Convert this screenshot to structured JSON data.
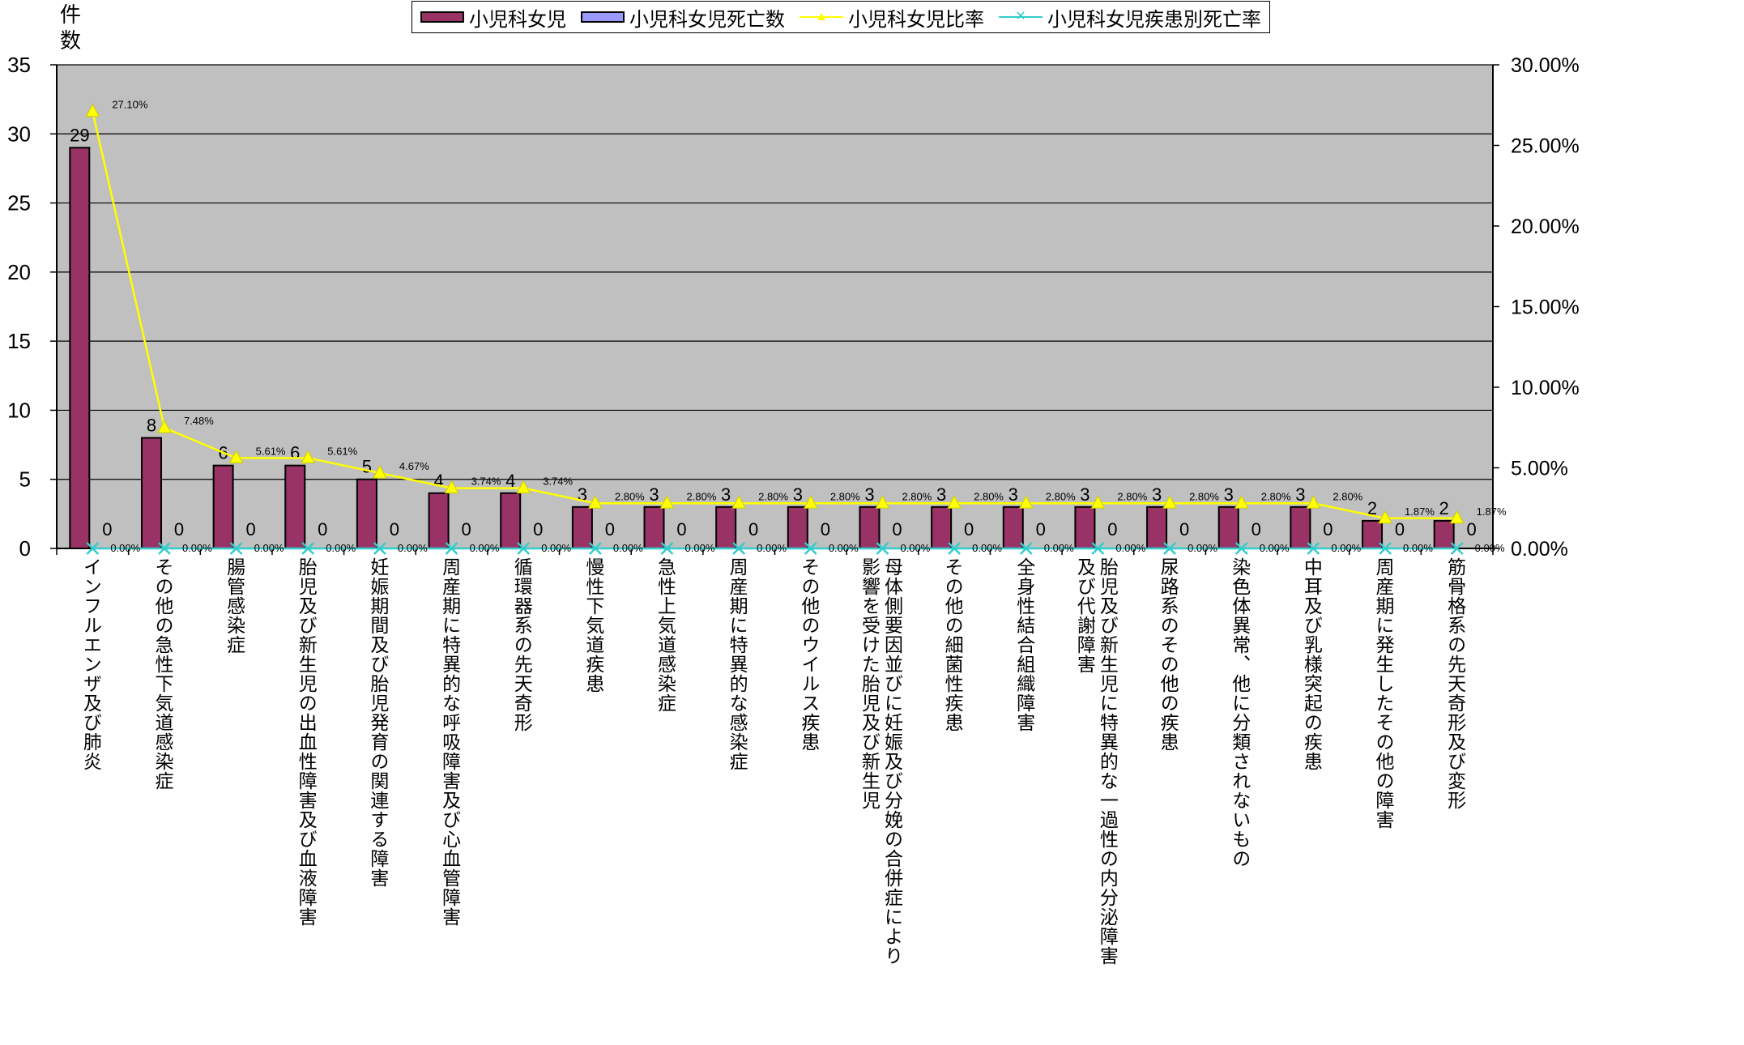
{
  "chart_data": {
    "type": "bar",
    "ylabel": "件数",
    "ylim": [
      0,
      35
    ],
    "y_ticks": [
      "0",
      "5",
      "10",
      "15",
      "20",
      "25",
      "30",
      "35"
    ],
    "y2lim": [
      0,
      0.3
    ],
    "y2_ticks": [
      "0.00%",
      "5.00%",
      "10.00%",
      "15.00%",
      "20.00%",
      "25.00%",
      "30.00%"
    ],
    "grid": true,
    "legend_position": "top",
    "categories": [
      "インフルエンザ及び肺炎",
      "その他の急性下気道感染症",
      "腸管感染症",
      "胎児及び新生児の出血性障害及び血液障害",
      "妊娠期間及び胎児発育の関連する障害",
      "周産期に特異的な呼吸障害及び心血管障害",
      "循環器系の先天奇形",
      "慢性下気道疾患",
      "急性上気道感染症",
      "周産期に特異的な感染症",
      "その他のウイルス疾患",
      "母体側要因並びに妊娠及び分娩の合併症により\n影響を受けた胎児及び新生児",
      "その他の細菌性疾患",
      "全身性結合組織障害",
      "胎児及び新生児に特異的な一過性の内分泌障害\n及び代謝障害",
      "尿路系のその他の疾患",
      "染色体異常、他に分類されないもの",
      "中耳及び乳様突起の疾患",
      "周産期に発生したその他の障害",
      "筋骨格系の先天奇形及び変形"
    ],
    "series": [
      {
        "name": "小児科女児",
        "type": "bar",
        "axis": "left",
        "color": "#993366",
        "values": [
          29,
          8,
          6,
          6,
          5,
          4,
          4,
          3,
          3,
          3,
          3,
          3,
          3,
          3,
          3,
          3,
          3,
          3,
          2,
          2
        ],
        "labels": [
          "29",
          "8",
          "6",
          "6",
          "5",
          "4",
          "4",
          "3",
          "3",
          "3",
          "3",
          "3",
          "3",
          "3",
          "3",
          "3",
          "3",
          "3",
          "2",
          "2"
        ]
      },
      {
        "name": "小児科女児死亡数",
        "type": "bar",
        "axis": "left",
        "color": "#9999ff",
        "values": [
          0,
          0,
          0,
          0,
          0,
          0,
          0,
          0,
          0,
          0,
          0,
          0,
          0,
          0,
          0,
          0,
          0,
          0,
          0,
          0
        ],
        "labels": [
          "0",
          "0",
          "0",
          "0",
          "0",
          "0",
          "0",
          "0",
          "0",
          "0",
          "0",
          "0",
          "0",
          "0",
          "0",
          "0",
          "0",
          "0",
          "0",
          "0"
        ]
      },
      {
        "name": "小児科女児比率",
        "type": "line",
        "axis": "right",
        "color": "#ffff00",
        "marker": "triangle",
        "values": [
          0.271,
          0.0748,
          0.0561,
          0.0561,
          0.0467,
          0.0374,
          0.0374,
          0.028,
          0.028,
          0.028,
          0.028,
          0.028,
          0.028,
          0.028,
          0.028,
          0.028,
          0.028,
          0.028,
          0.0187,
          0.0187
        ],
        "labels": [
          "27.10%",
          "7.48%",
          "5.61%",
          "5.61%",
          "4.67%",
          "3.74%",
          "3.74%",
          "2.80%",
          "2.80%",
          "2.80%",
          "2.80%",
          "2.80%",
          "2.80%",
          "2.80%",
          "2.80%",
          "2.80%",
          "2.80%",
          "2.80%",
          "1.87%",
          "1.87%"
        ]
      },
      {
        "name": "小児科女児疾患別死亡率",
        "type": "line",
        "axis": "right",
        "color": "#33cccc",
        "marker": "x",
        "values": [
          0,
          0,
          0,
          0,
          0,
          0,
          0,
          0,
          0,
          0,
          0,
          0,
          0,
          0,
          0,
          0,
          0,
          0,
          0,
          0
        ],
        "labels": [
          "0.00%",
          "0.00%",
          "0.00%",
          "0.00%",
          "0.00%",
          "0.00%",
          "0.00%",
          "0.00%",
          "0.00%",
          "0.00%",
          "0.00%",
          "0.00%",
          "0.00%",
          "0.00%",
          "0.00%",
          "0.00%",
          "0.00%",
          "0.00%",
          "0.00%",
          "0.00%"
        ]
      }
    ]
  }
}
